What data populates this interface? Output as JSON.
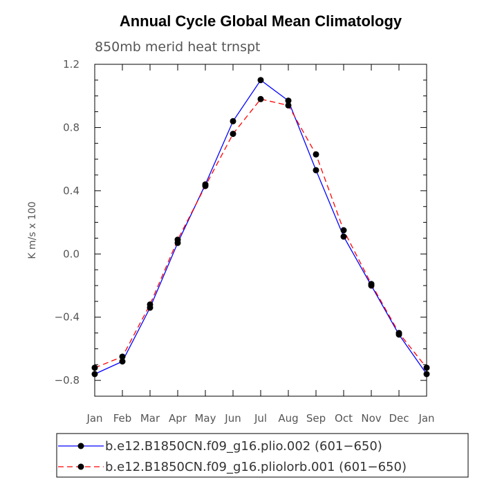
{
  "chart_data": {
    "type": "line",
    "title": "Annual Cycle Global Mean Climatology",
    "subtitle": "850mb merid heat trnspt",
    "ylabel": "K m/s x 100",
    "xlabel": "",
    "categories": [
      "Jan",
      "Feb",
      "Mar",
      "Apr",
      "May",
      "Jun",
      "Jul",
      "Aug",
      "Sep",
      "Oct",
      "Nov",
      "Dec",
      "Jan"
    ],
    "ylim": [
      -0.9,
      1.2
    ],
    "yticks": [
      -0.8,
      -0.4,
      0.0,
      0.4,
      0.8,
      1.2
    ],
    "ytick_labels": [
      "−0.8",
      "−0.4",
      "0.0",
      "0.4",
      "0.8",
      "1.2"
    ],
    "grid": false,
    "legend_position": "bottom",
    "series": [
      {
        "name": "b.e12.B1850CN.f09_g16.plio.002 (601−650)",
        "color": "#0000ff",
        "line_style": "solid",
        "values": [
          -0.76,
          -0.68,
          -0.34,
          0.07,
          0.44,
          0.84,
          1.1,
          0.97,
          0.53,
          0.11,
          -0.2,
          -0.51,
          -0.76
        ]
      },
      {
        "name": "b.e12.B1850CN.f09_g16.pliolorb.001 (601−650)",
        "color": "#ff0000",
        "line_style": "dashed",
        "values": [
          -0.72,
          -0.65,
          -0.32,
          0.09,
          0.43,
          0.76,
          0.98,
          0.94,
          0.63,
          0.15,
          -0.19,
          -0.5,
          -0.72
        ]
      }
    ]
  }
}
